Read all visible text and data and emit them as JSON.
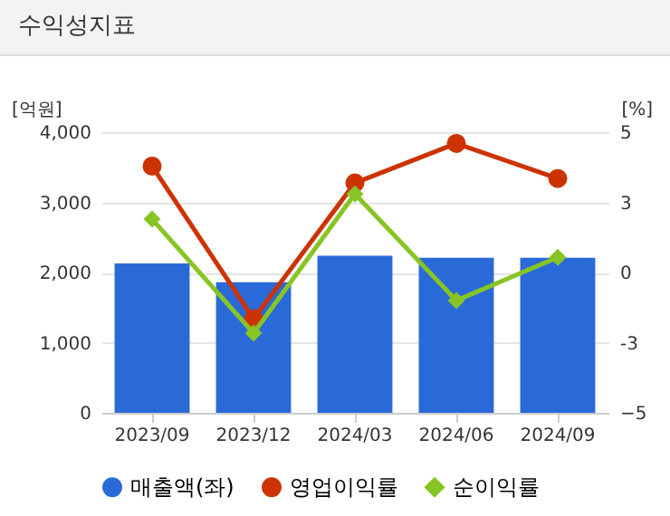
{
  "chart_data": {
    "type": "bar",
    "title": "수익성지표",
    "ylabel": "[억원]",
    "y2label": "[%]",
    "categories": [
      "2023/09",
      "2023/12",
      "2024/03",
      "2024/06",
      "2024/09"
    ],
    "series": [
      {
        "name": "매출액(좌)",
        "color": "#2a6ad8",
        "values": [
          2130,
          1860,
          2240,
          2210,
          2210
        ]
      },
      {
        "name": "영업이익률",
        "type": "line",
        "axis": "y2",
        "color": "#cc3300",
        "marker": "circle",
        "values": [
          3.79,
          -1.65,
          3.19,
          4.6,
          3.35
        ]
      },
      {
        "name": "순이익률",
        "type": "line",
        "axis": "y2",
        "color": "#88c425",
        "marker": "diamond",
        "values": [
          1.9,
          -2.16,
          2.8,
          -1.0,
          0.54
        ]
      }
    ],
    "ylim": [
      0,
      4000
    ],
    "yticks": [
      0,
      {
        "value": 1000,
        "label": "1,000"
      },
      {
        "value": 2000,
        "label": "2,000"
      },
      {
        "value": 3000,
        "label": "3,000"
      },
      {
        "value": 4000,
        "label": "4,000"
      }
    ],
    "y2lim": [
      -5,
      5
    ],
    "y2ticks": [
      -5,
      {
        "value": -2.5,
        "label": "-3"
      },
      0,
      {
        "value": 2.5,
        "label": "3"
      },
      5
    ],
    "grid": "y",
    "legend": "bottom"
  }
}
